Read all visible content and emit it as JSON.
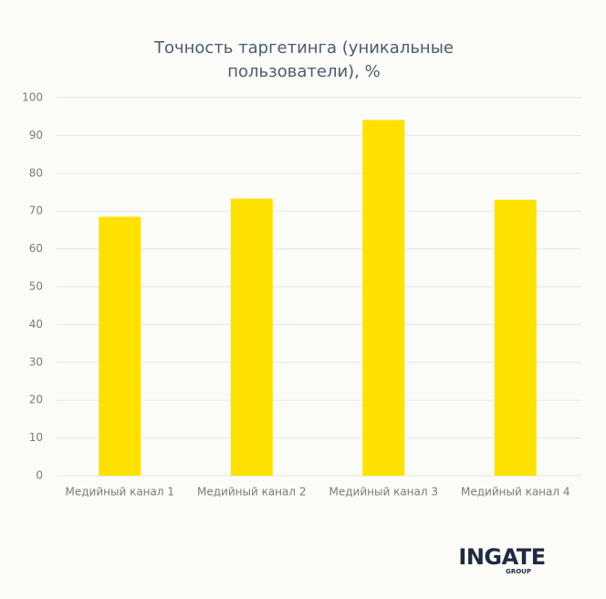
{
  "chart_data": {
    "type": "bar",
    "title": "Точность таргетинга (уникальные пользователи), %",
    "categories": [
      "Медийный канал 1",
      "Медийный канал 2",
      "Медийный канал 3",
      "Медийный канал 4"
    ],
    "values": [
      68.5,
      73.3,
      94.1,
      73.0
    ],
    "color": "#ffe100",
    "ylim": [
      0,
      100
    ],
    "yticks": [
      0,
      10,
      20,
      30,
      40,
      50,
      60,
      70,
      80,
      90,
      100
    ],
    "grid": true
  },
  "logo": {
    "name": "INGATE",
    "sub": "GROUP"
  }
}
